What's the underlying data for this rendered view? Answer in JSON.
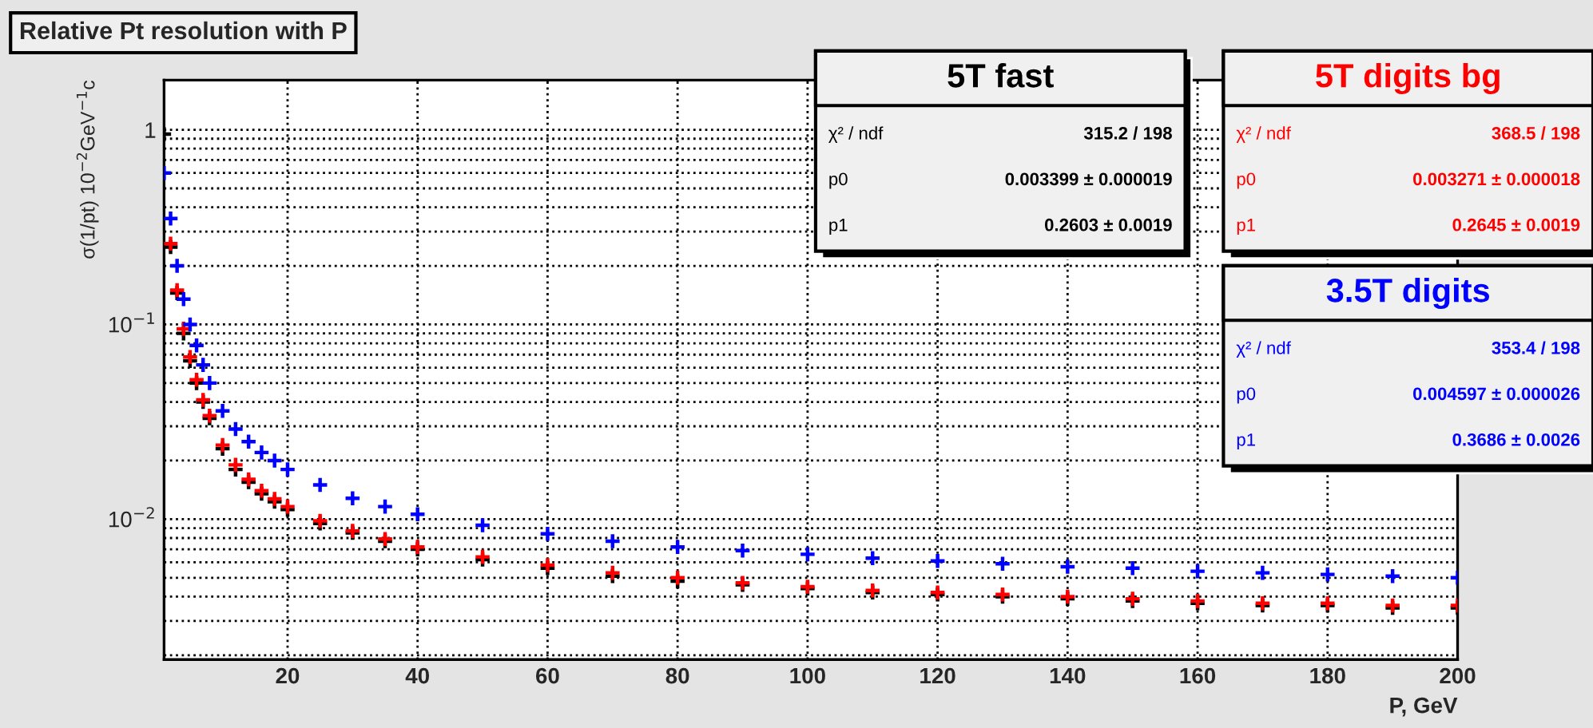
{
  "chart_data": {
    "type": "scatter",
    "title": "Relative Pt resolution with P",
    "xlabel": "P, GeV",
    "ylabel": "σ(1/pt) 10$^{−2}$GeV$^{−1}$c",
    "marker": "cross",
    "grid": true,
    "log": "y",
    "legend": false,
    "xlim": [
      1,
      200
    ],
    "xticks": [
      20,
      40,
      60,
      80,
      100,
      120,
      140,
      160,
      180,
      200
    ],
    "ylim": [
      0.0019,
      1.8
    ],
    "yticks": [
      {
        "value": 0.01,
        "label": "10$^{−2}$"
      },
      {
        "value": 0.1,
        "label": "10$^{−1}$"
      },
      1
    ],
    "series": [
      {
        "name": "5T fast",
        "color": "#000000",
        "x": [
          1,
          2,
          3,
          4,
          5,
          6,
          7,
          8,
          10,
          12,
          14,
          16,
          18,
          20,
          25,
          30,
          35,
          40,
          50,
          60,
          70,
          80,
          90,
          100,
          110,
          120,
          130,
          140,
          150,
          160,
          170,
          180,
          190,
          200
        ],
        "values": [
          0.95,
          0.25,
          0.145,
          0.09,
          0.065,
          0.05,
          0.04,
          0.033,
          0.023,
          0.018,
          0.0155,
          0.0135,
          0.0123,
          0.0112,
          0.0095,
          0.0085,
          0.0077,
          0.007,
          0.0062,
          0.0056,
          0.0051,
          0.0048,
          0.0046,
          0.0044,
          0.0042,
          0.0041,
          0.004,
          0.0039,
          0.0038,
          0.0037,
          0.0036,
          0.0036,
          0.0035,
          0.0035
        ]
      },
      {
        "name": "5T digits bg",
        "color": "#ff0000",
        "x": [
          2,
          3,
          4,
          5,
          6,
          7,
          8,
          10,
          12,
          14,
          16,
          18,
          20,
          25,
          30,
          35,
          40,
          50,
          60,
          70,
          80,
          90,
          100,
          110,
          120,
          130,
          140,
          150,
          160,
          170,
          180,
          190,
          200
        ],
        "values": [
          0.26,
          0.15,
          0.095,
          0.068,
          0.052,
          0.041,
          0.034,
          0.024,
          0.019,
          0.016,
          0.014,
          0.0127,
          0.0116,
          0.0098,
          0.0087,
          0.0079,
          0.0072,
          0.0064,
          0.0058,
          0.0053,
          0.005,
          0.0047,
          0.0045,
          0.0043,
          0.0042,
          0.0041,
          0.004,
          0.0039,
          0.0038,
          0.0037,
          0.0037,
          0.0036,
          0.0036
        ]
      },
      {
        "name": "3.5T digits",
        "color": "#0000ff",
        "x": [
          1,
          2,
          3,
          4,
          5,
          6,
          7,
          8,
          10,
          12,
          14,
          16,
          18,
          20,
          25,
          30,
          35,
          40,
          50,
          60,
          70,
          80,
          90,
          100,
          110,
          120,
          130,
          140,
          150,
          160,
          170,
          180,
          190,
          200
        ],
        "values": [
          0.6,
          0.35,
          0.2,
          0.135,
          0.1,
          0.078,
          0.062,
          0.05,
          0.036,
          0.029,
          0.025,
          0.022,
          0.02,
          0.018,
          0.015,
          0.0128,
          0.0116,
          0.0106,
          0.0093,
          0.0084,
          0.0077,
          0.0072,
          0.0069,
          0.0066,
          0.0063,
          0.0061,
          0.0059,
          0.0057,
          0.0056,
          0.0054,
          0.0053,
          0.0052,
          0.0051,
          0.005
        ]
      }
    ],
    "annotations": [
      "χ² / ndf",
      "315.2 / 198",
      "p0",
      "0.003399 ± 0.000019",
      "p1",
      "0.2603 ± 0.0019",
      "χ² / ndf",
      "368.5 / 198",
      "p0",
      "0.003271 ± 0.000018",
      "p1",
      "0.2645 ± 0.0019",
      "χ² / ndf",
      "353.4 / 198",
      "p0",
      "0.004597 ± 0.000026",
      "p1",
      "0.3686 ± 0.0026"
    ]
  }
}
